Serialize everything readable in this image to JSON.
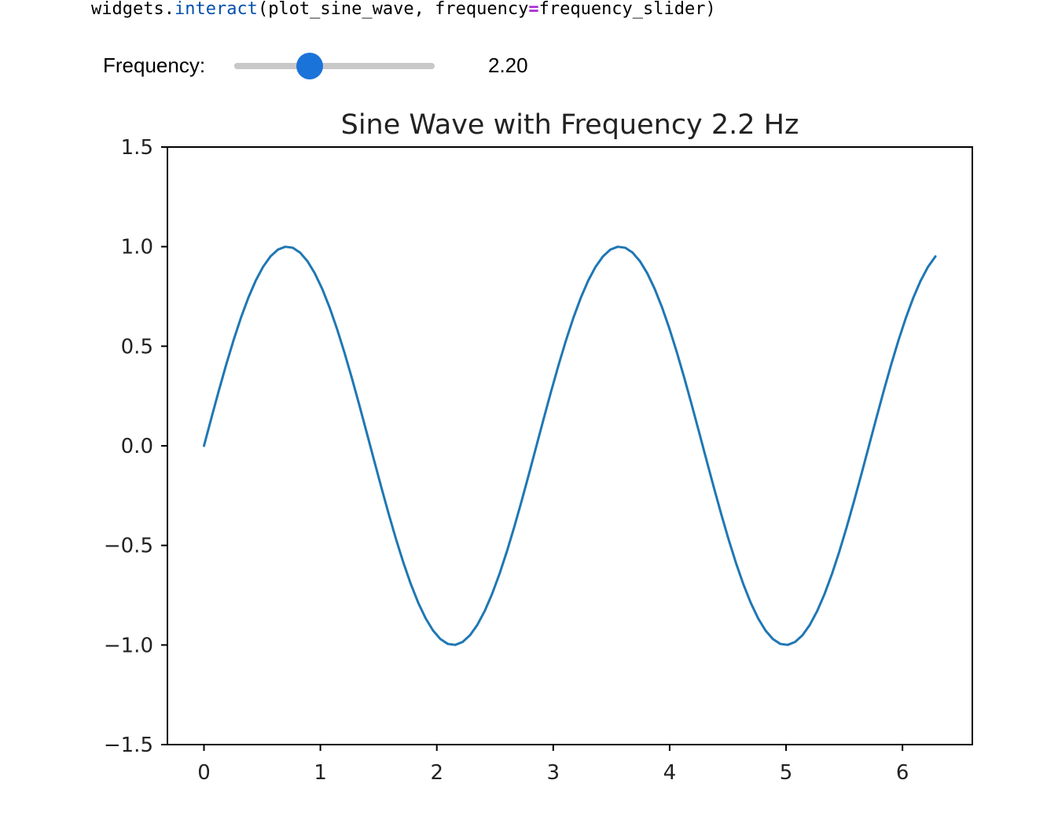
{
  "code": {
    "object": "widgets",
    "dot": ".",
    "method": "interact",
    "open_paren": "(",
    "arg1": "plot_sine_wave",
    "comma": ", ",
    "kwarg": "frequency",
    "equals": "=",
    "kwarg_value": "frequency_slider",
    "close_paren": ")"
  },
  "slider": {
    "label": "Frequency:",
    "value": 2.2,
    "min": 0.5,
    "max": 5.0,
    "readout": "2.20",
    "thumb_color": "#1a73d9",
    "track_color": "#c8c8c8"
  },
  "chart_data": {
    "type": "line",
    "title": "Sine Wave with Frequency 2.2 Hz",
    "xlabel": "",
    "ylabel": "",
    "xlim": [
      -0.314,
      6.6
    ],
    "ylim": [
      -1.5,
      1.5
    ],
    "x_ticks": [
      0,
      1,
      2,
      3,
      4,
      5,
      6
    ],
    "x_tick_labels": [
      "0",
      "1",
      "2",
      "3",
      "4",
      "5",
      "6"
    ],
    "y_ticks": [
      1.5,
      1.0,
      0.5,
      0.0,
      -0.5,
      -1.0,
      -1.5
    ],
    "y_tick_labels": [
      "1.5",
      "1.0",
      "0.5",
      "0.0",
      "−0.5",
      "−1.0",
      "−1.5"
    ],
    "grid": false,
    "line_color": "#1f77b4",
    "series": [
      {
        "function": "sin(2.2 * x)",
        "x_start": 0,
        "x_end": 6.283,
        "samples": 100
      }
    ]
  }
}
